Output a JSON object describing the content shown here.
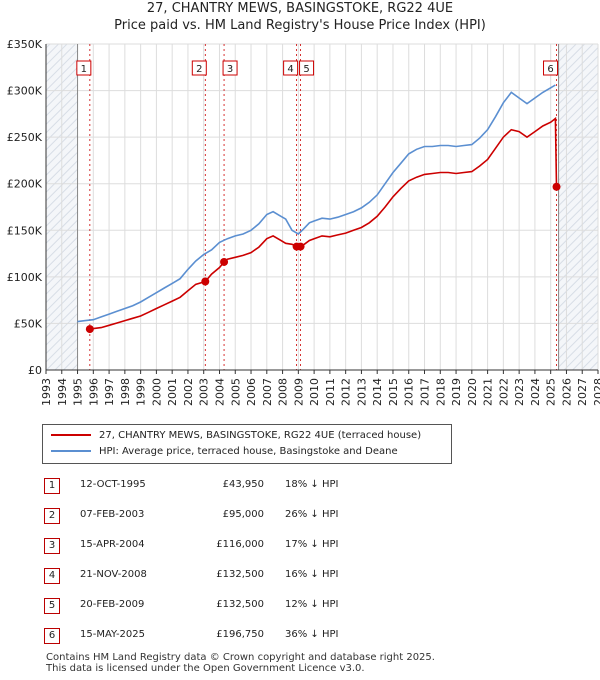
{
  "title_line1": "27, CHANTRY MEWS, BASINGSTOKE, RG22 4UE",
  "title_line2": "Price paid vs. HM Land Registry's House Price Index (HPI)",
  "colors": {
    "property": "#cc0000",
    "hpi": "#5b8fd1",
    "hatch": "#d7dde6",
    "grid": "#dddddd",
    "marker_border": "#cc0000"
  },
  "legend": {
    "property_label": "27, CHANTRY MEWS, BASINGSTOKE, RG22 4UE (terraced house)",
    "hpi_label": "HPI: Average price, terraced house, Basingstoke and Deane"
  },
  "transactions": [
    {
      "num": "1",
      "date": "12-OCT-1995",
      "price": "£43,950",
      "hpi": "18% ↓ HPI"
    },
    {
      "num": "2",
      "date": "07-FEB-2003",
      "price": "£95,000",
      "hpi": "26% ↓ HPI"
    },
    {
      "num": "3",
      "date": "15-APR-2004",
      "price": "£116,000",
      "hpi": "17% ↓ HPI"
    },
    {
      "num": "4",
      "date": "21-NOV-2008",
      "price": "£132,500",
      "hpi": "16% ↓ HPI"
    },
    {
      "num": "5",
      "date": "20-FEB-2009",
      "price": "£132,500",
      "hpi": "12% ↓ HPI"
    },
    {
      "num": "6",
      "date": "15-MAY-2025",
      "price": "£196,750",
      "hpi": "36% ↓ HPI"
    }
  ],
  "footer_line1": "Contains HM Land Registry data © Crown copyright and database right 2025.",
  "footer_line2": "This data is licensed under the Open Government Licence v3.0.",
  "chart_data": {
    "type": "line",
    "title": "27, CHANTRY MEWS, BASINGSTOKE, RG22 4UE",
    "subtitle": "Price paid vs. HM Land Registry's House Price Index (HPI)",
    "xlim": [
      1993,
      2028
    ],
    "ylim": [
      0,
      350000
    ],
    "x_ticks": [
      1993,
      1994,
      1995,
      1996,
      1997,
      1998,
      1999,
      2000,
      2001,
      2002,
      2003,
      2004,
      2005,
      2006,
      2007,
      2008,
      2009,
      2010,
      2011,
      2012,
      2013,
      2014,
      2015,
      2016,
      2017,
      2018,
      2019,
      2020,
      2021,
      2022,
      2023,
      2024,
      2025,
      2026,
      2027,
      2028
    ],
    "y_ticks": [
      0,
      50000,
      100000,
      150000,
      200000,
      250000,
      300000,
      350000
    ],
    "y_tick_labels": [
      "£0",
      "£50K",
      "£100K",
      "£150K",
      "£200K",
      "£250K",
      "£300K",
      "£350K"
    ],
    "hatched_before": 1995.0,
    "hatched_after": 2025.5,
    "grid": true,
    "series": [
      {
        "name": "HPI: Average price, terraced house, Basingstoke and Deane",
        "x": [
          1995.0,
          1995.5,
          1996.0,
          1996.5,
          1997.0,
          1997.5,
          1998.0,
          1998.5,
          1999.0,
          1999.5,
          2000.0,
          2000.5,
          2001.0,
          2001.5,
          2002.0,
          2002.5,
          2003.0,
          2003.5,
          2004.0,
          2004.5,
          2005.0,
          2005.5,
          2006.0,
          2006.5,
          2007.0,
          2007.4,
          2007.8,
          2008.2,
          2008.6,
          2009.0,
          2009.3,
          2009.7,
          2010.0,
          2010.5,
          2011.0,
          2011.5,
          2012.0,
          2012.5,
          2013.0,
          2013.5,
          2014.0,
          2014.5,
          2015.0,
          2015.5,
          2016.0,
          2016.5,
          2017.0,
          2017.5,
          2018.0,
          2018.5,
          2019.0,
          2019.5,
          2020.0,
          2020.5,
          2021.0,
          2021.5,
          2022.0,
          2022.5,
          2023.0,
          2023.5,
          2024.0,
          2024.5,
          2025.0,
          2025.3
        ],
        "values": [
          52000,
          53000,
          54000,
          57000,
          60000,
          63000,
          66000,
          69000,
          73000,
          78000,
          83000,
          88000,
          93000,
          98000,
          108000,
          117000,
          124000,
          129000,
          137000,
          141000,
          144000,
          146000,
          150000,
          157000,
          167000,
          170000,
          166000,
          162000,
          150000,
          146000,
          151000,
          158000,
          160000,
          163000,
          162000,
          164000,
          167000,
          170000,
          174000,
          180000,
          188000,
          200000,
          212000,
          222000,
          232000,
          237000,
          240000,
          240000,
          241000,
          241000,
          240000,
          241000,
          242000,
          249000,
          258000,
          272000,
          287000,
          298000,
          292000,
          286000,
          292000,
          298000,
          303000,
          306000
        ]
      },
      {
        "name": "27, CHANTRY MEWS, BASINGSTOKE, RG22 4UE (terraced house)",
        "x": [
          1995.78,
          1996.0,
          1996.5,
          1997.0,
          1997.5,
          1998.0,
          1998.5,
          1999.0,
          1999.5,
          2000.0,
          2000.5,
          2001.0,
          2001.5,
          2002.0,
          2002.5,
          2003.1,
          2003.5,
          2004.0,
          2004.29,
          2004.5,
          2005.0,
          2005.5,
          2006.0,
          2006.5,
          2007.0,
          2007.4,
          2007.8,
          2008.2,
          2008.6,
          2008.89,
          2009.14,
          2009.3,
          2009.7,
          2010.0,
          2010.5,
          2011.0,
          2011.5,
          2012.0,
          2012.5,
          2013.0,
          2013.5,
          2014.0,
          2014.5,
          2015.0,
          2015.5,
          2016.0,
          2016.5,
          2017.0,
          2017.5,
          2018.0,
          2018.5,
          2019.0,
          2019.5,
          2020.0,
          2020.5,
          2021.0,
          2021.5,
          2022.0,
          2022.5,
          2023.0,
          2023.5,
          2024.0,
          2024.5,
          2025.0,
          2025.3,
          2025.37
        ],
        "values": [
          43950,
          44500,
          45500,
          48000,
          50500,
          53000,
          55500,
          58000,
          62000,
          66000,
          70000,
          74000,
          78000,
          85000,
          92000,
          95000,
          103000,
          110000,
          116000,
          119000,
          121000,
          123000,
          126000,
          132000,
          141000,
          144000,
          140000,
          136000,
          135000,
          132500,
          132500,
          134000,
          139000,
          141000,
          144000,
          143000,
          145000,
          147000,
          150000,
          153000,
          158000,
          165000,
          175000,
          186000,
          195000,
          203000,
          207000,
          210000,
          211000,
          212000,
          212000,
          211000,
          212000,
          213000,
          219000,
          226000,
          238000,
          250000,
          258000,
          256000,
          250000,
          256000,
          262000,
          266000,
          270000,
          196750
        ]
      }
    ],
    "sales": [
      {
        "label": "1",
        "x": 1995.78,
        "value": 43950
      },
      {
        "label": "2",
        "x": 2003.1,
        "value": 95000
      },
      {
        "label": "3",
        "x": 2004.29,
        "value": 116000
      },
      {
        "label": "4",
        "x": 2008.89,
        "value": 132500
      },
      {
        "label": "5",
        "x": 2009.14,
        "value": 132500
      },
      {
        "label": "6",
        "x": 2025.37,
        "value": 196750
      }
    ]
  }
}
